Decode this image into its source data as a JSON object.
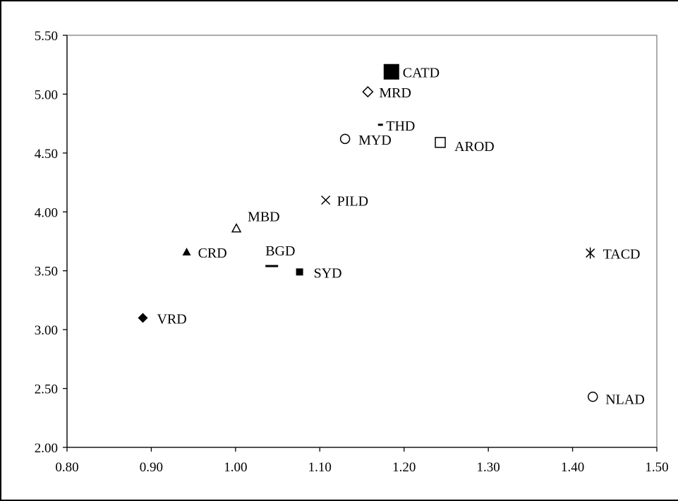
{
  "chart_data": {
    "type": "scatter",
    "title": "",
    "xlabel": "",
    "ylabel": "",
    "xlim": [
      0.8,
      1.5
    ],
    "ylim": [
      2.0,
      5.5
    ],
    "x_ticks": [
      "0.80",
      "0.90",
      "1.00",
      "1.10",
      "1.20",
      "1.30",
      "1.40",
      "1.50"
    ],
    "y_ticks": [
      "2.00",
      "2.50",
      "3.00",
      "3.50",
      "4.00",
      "4.50",
      "5.00",
      "5.50"
    ],
    "grid": false,
    "legend": "none",
    "points": [
      {
        "label": "CATD",
        "x": 1.185,
        "y": 5.19,
        "marker": "square-filled-large"
      },
      {
        "label": "MRD",
        "x": 1.157,
        "y": 5.02,
        "marker": "diamond-open"
      },
      {
        "label": "THD",
        "x": 1.172,
        "y": 4.74,
        "marker": "dash"
      },
      {
        "label": "MYD",
        "x": 1.13,
        "y": 4.62,
        "marker": "circle-open"
      },
      {
        "label": "AROD",
        "x": 1.243,
        "y": 4.59,
        "marker": "square-open"
      },
      {
        "label": "PILD",
        "x": 1.107,
        "y": 4.1,
        "marker": "cross"
      },
      {
        "label": "MBD",
        "x": 1.001,
        "y": 3.86,
        "marker": "triangle-open"
      },
      {
        "label": "CRD",
        "x": 0.942,
        "y": 3.66,
        "marker": "triangle-filled"
      },
      {
        "label": "BGD",
        "x": 1.043,
        "y": 3.54,
        "marker": "dash-wide"
      },
      {
        "label": "SYD",
        "x": 1.076,
        "y": 3.49,
        "marker": "square-filled"
      },
      {
        "label": "TACD",
        "x": 1.421,
        "y": 3.65,
        "marker": "asterisk"
      },
      {
        "label": "VRD",
        "x": 0.89,
        "y": 3.1,
        "marker": "diamond-filled"
      },
      {
        "label": "NLAD",
        "x": 1.424,
        "y": 2.43,
        "marker": "circle-open"
      }
    ]
  }
}
